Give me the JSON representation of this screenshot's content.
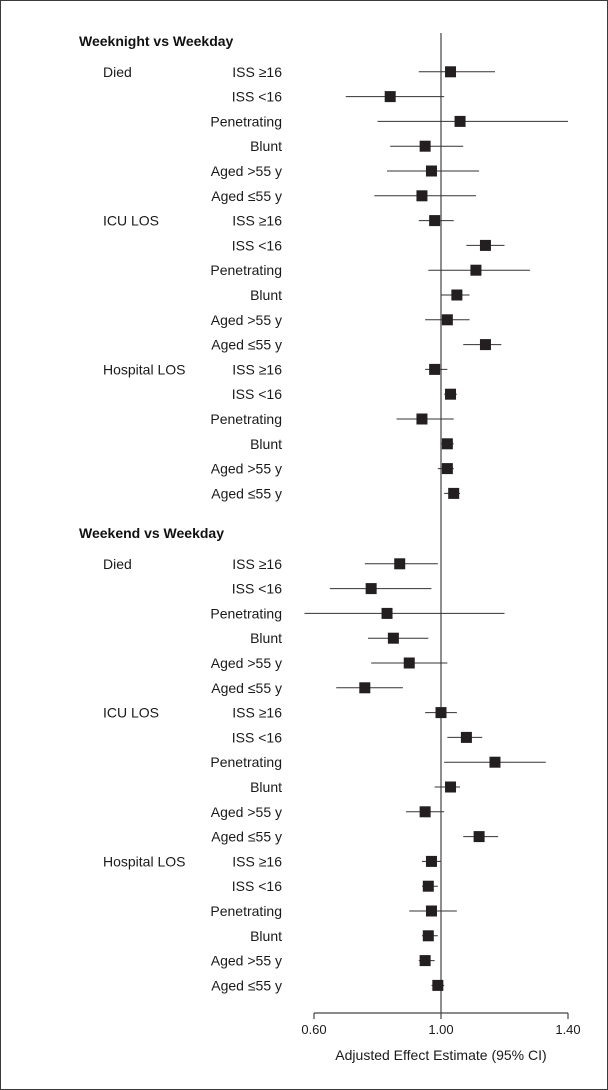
{
  "chart_data": {
    "type": "forest",
    "xlabel": "Adjusted Effect Estimate (95% CI)",
    "xlim": [
      0.6,
      1.4
    ],
    "xticks": [
      "0.60",
      "1.00",
      "1.40"
    ],
    "reference_line": 1.0,
    "marker_color": "#231f20",
    "sections": [
      {
        "header": "Weeknight vs Weekday",
        "groups": [
          {
            "outcome": "Died",
            "rows": [
              {
                "subgroup": "ISS ≥16",
                "estimate": 1.03,
                "ci": [
                  0.93,
                  1.17
                ]
              },
              {
                "subgroup": "ISS <16",
                "estimate": 0.84,
                "ci": [
                  0.7,
                  1.01
                ]
              },
              {
                "subgroup": "Penetrating",
                "estimate": 1.06,
                "ci": [
                  0.8,
                  1.4
                ]
              },
              {
                "subgroup": "Blunt",
                "estimate": 0.95,
                "ci": [
                  0.84,
                  1.07
                ]
              },
              {
                "subgroup": "Aged >55 y",
                "estimate": 0.97,
                "ci": [
                  0.83,
                  1.12
                ]
              },
              {
                "subgroup": "Aged ≤55 y",
                "estimate": 0.94,
                "ci": [
                  0.79,
                  1.11
                ]
              }
            ]
          },
          {
            "outcome": "ICU LOS",
            "rows": [
              {
                "subgroup": "ISS ≥16",
                "estimate": 0.98,
                "ci": [
                  0.93,
                  1.04
                ]
              },
              {
                "subgroup": "ISS <16",
                "estimate": 1.14,
                "ci": [
                  1.08,
                  1.2
                ]
              },
              {
                "subgroup": "Penetrating",
                "estimate": 1.11,
                "ci": [
                  0.96,
                  1.28
                ]
              },
              {
                "subgroup": "Blunt",
                "estimate": 1.05,
                "ci": [
                  1.0,
                  1.09
                ]
              },
              {
                "subgroup": "Aged >55 y",
                "estimate": 1.02,
                "ci": [
                  0.95,
                  1.09
                ]
              },
              {
                "subgroup": "Aged ≤55 y",
                "estimate": 1.14,
                "ci": [
                  1.07,
                  1.19
                ]
              }
            ]
          },
          {
            "outcome": "Hospital LOS",
            "rows": [
              {
                "subgroup": "ISS ≥16",
                "estimate": 0.98,
                "ci": [
                  0.95,
                  1.02
                ]
              },
              {
                "subgroup": "ISS <16",
                "estimate": 1.03,
                "ci": [
                  1.01,
                  1.05
                ]
              },
              {
                "subgroup": "Penetrating",
                "estimate": 0.94,
                "ci": [
                  0.86,
                  1.04
                ]
              },
              {
                "subgroup": "Blunt",
                "estimate": 1.02,
                "ci": [
                  1.0,
                  1.04
                ]
              },
              {
                "subgroup": "Aged >55 y",
                "estimate": 1.02,
                "ci": [
                  0.99,
                  1.04
                ]
              },
              {
                "subgroup": "Aged ≤55 y",
                "estimate": 1.04,
                "ci": [
                  1.01,
                  1.06
                ]
              }
            ]
          }
        ]
      },
      {
        "header": "Weekend vs Weekday",
        "groups": [
          {
            "outcome": "Died",
            "rows": [
              {
                "subgroup": "ISS ≥16",
                "estimate": 0.87,
                "ci": [
                  0.76,
                  0.99
                ]
              },
              {
                "subgroup": "ISS <16",
                "estimate": 0.78,
                "ci": [
                  0.65,
                  0.97
                ]
              },
              {
                "subgroup": "Penetrating",
                "estimate": 0.83,
                "ci": [
                  0.57,
                  1.2
                ]
              },
              {
                "subgroup": "Blunt",
                "estimate": 0.85,
                "ci": [
                  0.77,
                  0.96
                ]
              },
              {
                "subgroup": "Aged >55 y",
                "estimate": 0.9,
                "ci": [
                  0.78,
                  1.02
                ]
              },
              {
                "subgroup": "Aged ≤55 y",
                "estimate": 0.76,
                "ci": [
                  0.67,
                  0.88
                ]
              }
            ]
          },
          {
            "outcome": "ICU LOS",
            "rows": [
              {
                "subgroup": "ISS ≥16",
                "estimate": 1.0,
                "ci": [
                  0.95,
                  1.05
                ]
              },
              {
                "subgroup": "ISS <16",
                "estimate": 1.08,
                "ci": [
                  1.02,
                  1.13
                ]
              },
              {
                "subgroup": "Penetrating",
                "estimate": 1.17,
                "ci": [
                  1.01,
                  1.33
                ]
              },
              {
                "subgroup": "Blunt",
                "estimate": 1.03,
                "ci": [
                  0.98,
                  1.06
                ]
              },
              {
                "subgroup": "Aged >55 y",
                "estimate": 0.95,
                "ci": [
                  0.89,
                  1.01
                ]
              },
              {
                "subgroup": "Aged ≤55 y",
                "estimate": 1.12,
                "ci": [
                  1.07,
                  1.18
                ]
              }
            ]
          },
          {
            "outcome": "Hospital LOS",
            "rows": [
              {
                "subgroup": "ISS ≥16",
                "estimate": 0.97,
                "ci": [
                  0.94,
                  1.0
                ]
              },
              {
                "subgroup": "ISS <16",
                "estimate": 0.96,
                "ci": [
                  0.94,
                  0.99
                ]
              },
              {
                "subgroup": "Penetrating",
                "estimate": 0.97,
                "ci": [
                  0.9,
                  1.05
                ]
              },
              {
                "subgroup": "Blunt",
                "estimate": 0.96,
                "ci": [
                  0.94,
                  0.99
                ]
              },
              {
                "subgroup": "Aged >55 y",
                "estimate": 0.95,
                "ci": [
                  0.93,
                  0.98
                ]
              },
              {
                "subgroup": "Aged ≤55 y",
                "estimate": 0.99,
                "ci": [
                  0.97,
                  1.01
                ]
              }
            ]
          }
        ]
      }
    ]
  }
}
